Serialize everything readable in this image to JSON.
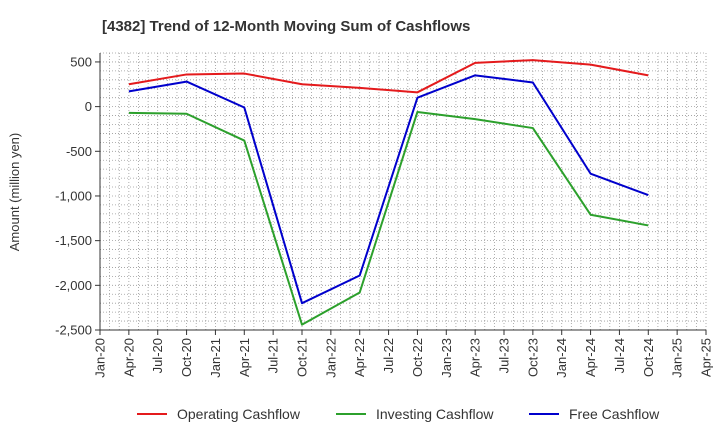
{
  "chart_data": {
    "type": "line",
    "title": "[4382]  Trend of 12-Month Moving Sum of Cashflows",
    "xlabel": "",
    "ylabel": "Amount (million yen)",
    "ylim": [
      -2500,
      600
    ],
    "yticks": [
      500,
      0,
      -500,
      -1000,
      -1500,
      -2000,
      -2500
    ],
    "ytick_labels": [
      "500",
      "0",
      "-500",
      "-1,000",
      "-1,500",
      "-2,000",
      "-2,500"
    ],
    "x_range": [
      "2020-01",
      "2025-04"
    ],
    "x_tick_labels": [
      "Jan-20",
      "Apr-20",
      "Jul-20",
      "Oct-20",
      "Jan-21",
      "Apr-21",
      "Jul-21",
      "Oct-21",
      "Jan-22",
      "Apr-22",
      "Jul-22",
      "Oct-22",
      "Jan-23",
      "Apr-23",
      "Jul-23",
      "Oct-23",
      "Jan-24",
      "Apr-24",
      "Jul-24",
      "Oct-24",
      "Jan-25",
      "Apr-25"
    ],
    "x": [
      "Apr-20",
      "Oct-20",
      "Apr-21",
      "Oct-21",
      "Apr-22",
      "Oct-22",
      "Apr-23",
      "Oct-23",
      "Apr-24",
      "Oct-24"
    ],
    "grid": true,
    "legend_position": "bottom",
    "series": [
      {
        "name": "Operating Cashflow",
        "color": "#e41a1c",
        "values": [
          250,
          360,
          370,
          250,
          210,
          160,
          490,
          520,
          470,
          350
        ]
      },
      {
        "name": "Investing Cashflow",
        "color": "#2ca02c",
        "values": [
          -70,
          -80,
          -380,
          -2440,
          -2080,
          -60,
          -140,
          -240,
          -1210,
          -1330
        ]
      },
      {
        "name": "Free Cashflow",
        "color": "#0000cc",
        "values": [
          170,
          280,
          -10,
          -2200,
          -1890,
          100,
          350,
          270,
          -750,
          -990
        ]
      }
    ]
  }
}
